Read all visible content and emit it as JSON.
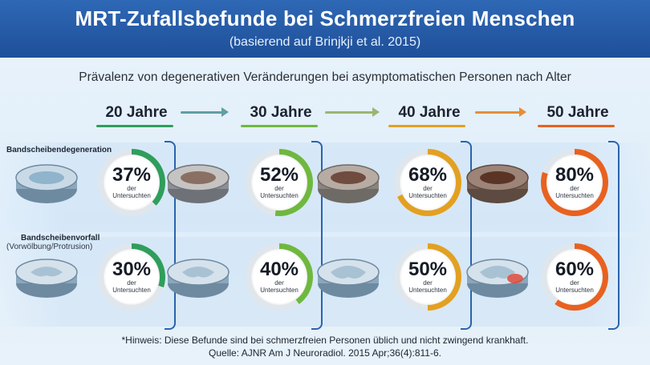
{
  "header": {
    "title": "MRT-Zufallsbefunde bei Schmerzfreien Menschen",
    "subtitle": "(basierend auf Brinjkji et al. 2015)"
  },
  "description": "Prävalenz von degenerativen Veränderungen bei asymptomatischen Personen nach Alter",
  "ages": [
    "20 Jahre",
    "30 Jahre",
    "40 Jahre",
    "50 Jahre"
  ],
  "rows": [
    {
      "label": "Bandscheibendegeneration",
      "sublabel": "",
      "values": [
        "37%",
        "52%",
        "68%",
        "80%"
      ],
      "fractions": [
        0.37,
        0.52,
        0.68,
        0.8
      ]
    },
    {
      "label": "Bandscheibenvorfall",
      "sublabel": "(Vorwölbung/Protrusion)",
      "values": [
        "30%",
        "40%",
        "50%",
        "60%"
      ],
      "fractions": [
        0.3,
        0.4,
        0.5,
        0.6
      ]
    }
  ],
  "stat_caption_line1": "der",
  "stat_caption_line2": "Untersuchten",
  "colors": [
    "#2f9e5b",
    "#6fb83e",
    "#e3a021",
    "#e8611f"
  ],
  "footnote": "*Hinweis: Diese Befunde sind bei schmerzfreien Personen üblich und nicht zwingend krankhaft.",
  "source": "Quelle: AJNR Am J Neuroradiol. 2015 Apr;36(4):811-6."
}
